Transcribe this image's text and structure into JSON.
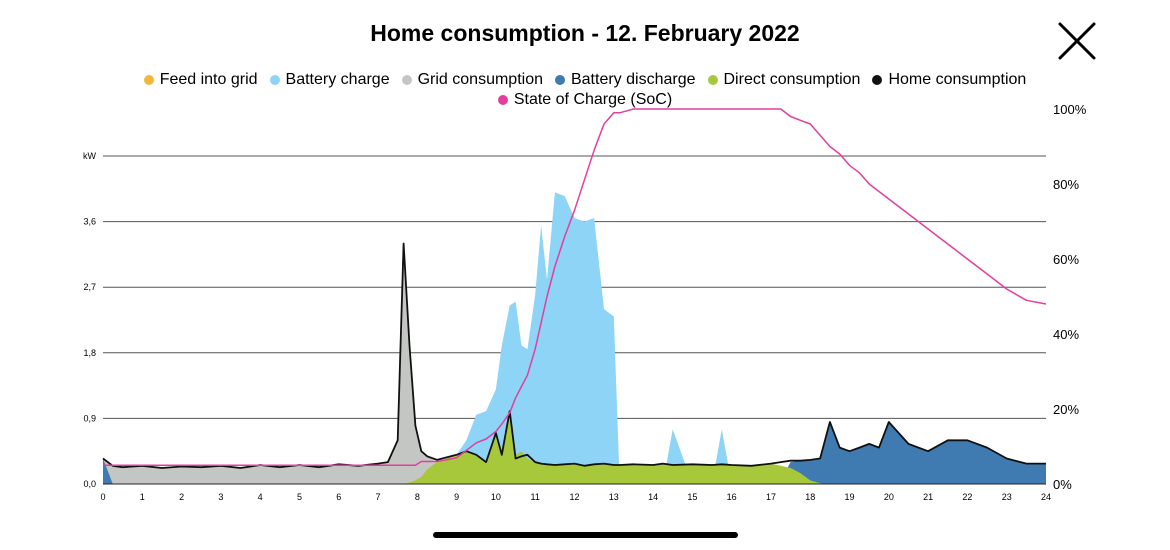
{
  "header": {
    "title": "Home consumption - 12. February 2022",
    "close_icon": "close-x-icon"
  },
  "legend": [
    {
      "name": "Feed into grid",
      "color": "#f2b83a"
    },
    {
      "name": "Battery charge",
      "color": "#8dd4f6"
    },
    {
      "name": "Grid consumption",
      "color": "#c4c6c4"
    },
    {
      "name": "Battery discharge",
      "color": "#3f7bb0"
    },
    {
      "name": "Direct consumption",
      "color": "#a8c83c"
    },
    {
      "name": "Home consumption",
      "color": "#111111"
    },
    {
      "name": "State of Charge (SoC)",
      "color": "#e23f9d"
    }
  ],
  "chart_data": {
    "type": "area",
    "x": [
      0,
      0.25,
      0.5,
      1,
      1.5,
      2,
      2.5,
      3,
      3.5,
      4,
      4.5,
      5,
      5.5,
      6,
      6.5,
      7,
      7.25,
      7.5,
      7.65,
      7.8,
      7.95,
      8.1,
      8.25,
      8.5,
      9,
      9.25,
      9.5,
      9.75,
      10,
      10.15,
      10.35,
      10.5,
      10.65,
      10.8,
      11,
      11.15,
      11.3,
      11.5,
      11.75,
      12,
      12.25,
      12.5,
      12.75,
      13,
      13.15,
      13.5,
      14,
      14.25,
      14.5,
      15,
      15.5,
      15.75,
      16,
      16.5,
      17,
      17.25,
      17.5,
      17.75,
      18,
      18.25,
      18.5,
      18.75,
      19,
      19.25,
      19.5,
      19.75,
      20,
      20.5,
      21,
      21.5,
      22,
      22.5,
      23,
      23.5,
      24
    ],
    "y_unit": "kW",
    "y_ticks": [
      "0,0",
      "0,9",
      "1,8",
      "2,7",
      "3,6",
      "kW"
    ],
    "y_range": [
      0,
      4.5
    ],
    "x_ticks": [
      "0",
      "1",
      "2",
      "3",
      "4",
      "5",
      "6",
      "7",
      "8",
      "9",
      "10",
      "11",
      "12",
      "13",
      "14",
      "15",
      "16",
      "17",
      "18",
      "19",
      "20",
      "21",
      "22",
      "23",
      "24"
    ],
    "x_range": [
      0,
      24
    ],
    "y2_ticks": [
      "0%",
      "20%",
      "40%",
      "60%",
      "80%",
      "100%"
    ],
    "y2_range": [
      0,
      100
    ],
    "grid": true,
    "legend_position": "top",
    "series": [
      {
        "name": "Grid consumption",
        "kind": "area",
        "color": "#c4c6c4",
        "values": [
          0.35,
          0.25,
          0.23,
          0.25,
          0.22,
          0.24,
          0.23,
          0.25,
          0.22,
          0.26,
          0.23,
          0.26,
          0.23,
          0.27,
          0.25,
          0.28,
          0.3,
          0.6,
          3.3,
          1.9,
          0.8,
          0.45,
          0.38,
          0.3,
          0.1,
          0,
          0,
          0,
          0,
          0,
          0,
          0,
          0,
          0,
          0,
          0,
          0,
          0,
          0,
          0,
          0,
          0,
          0,
          0,
          0,
          0,
          0,
          0,
          0,
          0,
          0,
          0,
          0,
          0,
          0,
          0,
          0,
          0,
          0,
          0,
          0,
          0,
          0,
          0,
          0,
          0,
          0,
          0,
          0,
          0,
          0,
          0,
          0,
          0,
          0
        ]
      },
      {
        "name": "Battery charge",
        "kind": "area",
        "color": "#8dd4f6",
        "values": [
          0,
          0,
          0,
          0,
          0,
          0,
          0,
          0,
          0,
          0,
          0,
          0,
          0,
          0,
          0,
          0,
          0,
          0,
          0,
          0,
          0,
          0,
          0,
          0,
          0.4,
          0.6,
          0.95,
          1.0,
          1.3,
          1.9,
          2.45,
          2.5,
          1.9,
          1.85,
          2.6,
          3.55,
          2.8,
          4.0,
          3.95,
          3.65,
          3.6,
          3.65,
          2.4,
          2.3,
          0,
          0,
          0,
          0,
          0.75,
          0,
          0,
          0.75,
          0,
          0,
          0,
          0,
          0,
          0,
          0,
          0,
          0,
          0,
          0,
          0,
          0,
          0,
          0,
          0,
          0,
          0,
          0,
          0,
          0,
          0,
          0
        ]
      },
      {
        "name": "Battery discharge",
        "kind": "area",
        "color": "#3f7bb0",
        "values": [
          0.35,
          0,
          0,
          0,
          0,
          0,
          0,
          0,
          0,
          0,
          0,
          0,
          0,
          0,
          0,
          0,
          0,
          0,
          0,
          0,
          0,
          0,
          0,
          0,
          0,
          0,
          0,
          0,
          0,
          0,
          0,
          0,
          0,
          0,
          0,
          0,
          0,
          0,
          0,
          0,
          0,
          0,
          0,
          0,
          0,
          0,
          0,
          0,
          0,
          0,
          0,
          0,
          0,
          0,
          0,
          0.05,
          0.3,
          0.32,
          0.33,
          0.35,
          0.85,
          0.5,
          0.45,
          0.5,
          0.55,
          0.5,
          0.85,
          0.55,
          0.45,
          0.6,
          0.6,
          0.5,
          0.35,
          0.28,
          0.28
        ]
      },
      {
        "name": "Direct consumption",
        "kind": "area",
        "color": "#a8c83c",
        "values": [
          0,
          0,
          0,
          0,
          0,
          0,
          0,
          0,
          0,
          0,
          0,
          0,
          0,
          0,
          0,
          0,
          0,
          0,
          0,
          0.02,
          0.05,
          0.1,
          0.2,
          0.3,
          0.4,
          0.45,
          0.4,
          0.3,
          0.7,
          0.4,
          1.0,
          0.4,
          0.45,
          0.35,
          0.3,
          0.28,
          0.27,
          0.26,
          0.27,
          0.28,
          0.25,
          0.27,
          0.28,
          0.26,
          0.26,
          0.27,
          0.26,
          0.28,
          0.26,
          0.27,
          0.26,
          0.27,
          0.26,
          0.25,
          0.28,
          0.25,
          0.22,
          0.15,
          0.05,
          0.01,
          0,
          0,
          0,
          0,
          0,
          0,
          0,
          0,
          0,
          0,
          0,
          0,
          0,
          0,
          0
        ]
      },
      {
        "name": "Home consumption",
        "kind": "line",
        "color": "#111111",
        "values": [
          0.35,
          0.25,
          0.23,
          0.25,
          0.22,
          0.24,
          0.23,
          0.25,
          0.22,
          0.26,
          0.23,
          0.26,
          0.23,
          0.27,
          0.25,
          0.28,
          0.3,
          0.6,
          3.3,
          1.9,
          0.8,
          0.45,
          0.38,
          0.33,
          0.4,
          0.45,
          0.4,
          0.3,
          0.7,
          0.4,
          1.0,
          0.35,
          0.38,
          0.4,
          0.3,
          0.28,
          0.27,
          0.26,
          0.27,
          0.28,
          0.25,
          0.27,
          0.28,
          0.26,
          0.26,
          0.27,
          0.26,
          0.28,
          0.26,
          0.27,
          0.26,
          0.27,
          0.26,
          0.25,
          0.28,
          0.3,
          0.32,
          0.32,
          0.33,
          0.35,
          0.85,
          0.5,
          0.45,
          0.5,
          0.55,
          0.5,
          0.85,
          0.55,
          0.45,
          0.6,
          0.6,
          0.5,
          0.35,
          0.28,
          0.28
        ]
      },
      {
        "name": "State of Charge (SoC)",
        "kind": "line",
        "axis": "right",
        "color": "#e23f9d",
        "values": [
          5,
          5,
          5,
          5,
          5,
          5,
          5,
          5,
          5,
          5,
          5,
          5,
          5,
          5,
          5,
          5,
          5,
          5,
          5,
          5,
          5,
          6,
          6,
          6,
          7,
          9,
          11,
          12,
          14,
          16,
          19,
          23,
          26,
          29,
          36,
          43,
          50,
          58,
          66,
          73,
          81,
          89,
          96,
          99,
          99,
          100,
          100,
          100,
          100,
          100,
          100,
          100,
          100,
          100,
          100,
          100,
          98,
          97,
          96,
          93,
          90,
          88,
          85,
          83,
          80,
          78,
          76,
          72,
          68,
          64,
          60,
          56,
          52,
          49,
          48
        ]
      }
    ]
  }
}
